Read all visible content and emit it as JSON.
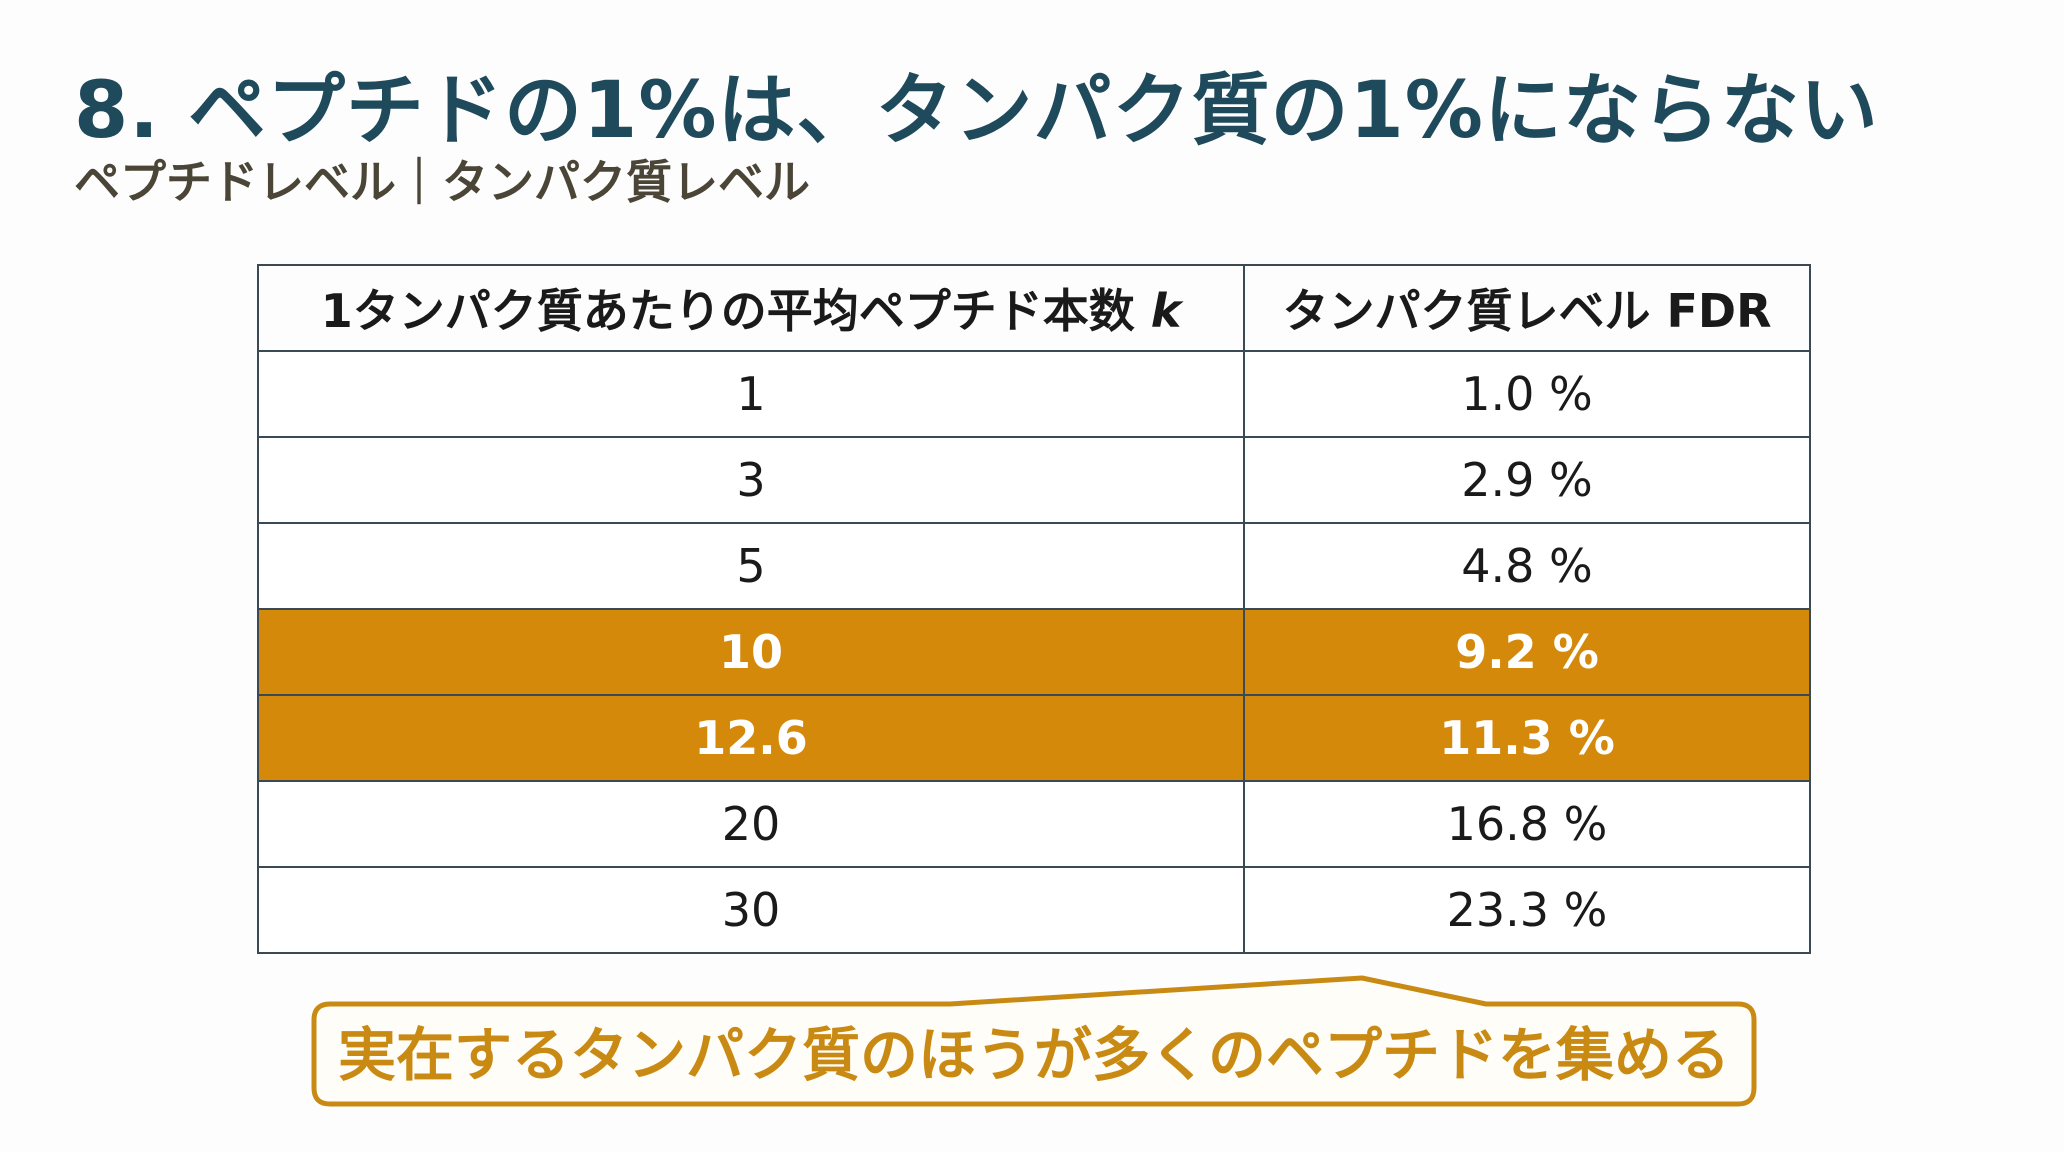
{
  "title": "8. ペプチドの1%は、タンパク質の1%にならない",
  "subtitle": "ペプチドレベル｜タンパク質レベル",
  "table": {
    "headers": {
      "k_label": "1タンパク質あたりの平均ペプチド本数",
      "k_var": "k",
      "fdr": "タンパク質レベル FDR"
    },
    "rows": [
      {
        "k": "1",
        "fdr": "1.0 %",
        "highlight": false
      },
      {
        "k": "3",
        "fdr": "2.9 %",
        "highlight": false
      },
      {
        "k": "5",
        "fdr": "4.8 %",
        "highlight": false
      },
      {
        "k": "10",
        "fdr": "9.2 %",
        "highlight": true
      },
      {
        "k": "12.6",
        "fdr": "11.3 %",
        "highlight": true
      },
      {
        "k": "20",
        "fdr": "16.8 %",
        "highlight": false
      },
      {
        "k": "30",
        "fdr": "23.3 %",
        "highlight": false
      }
    ]
  },
  "callout": "実在するタンパク質のほうが多くのペプチドを集める",
  "colors": {
    "title": "#1e4a5c",
    "highlight": "#d4890a",
    "callout": "#c98a14"
  }
}
